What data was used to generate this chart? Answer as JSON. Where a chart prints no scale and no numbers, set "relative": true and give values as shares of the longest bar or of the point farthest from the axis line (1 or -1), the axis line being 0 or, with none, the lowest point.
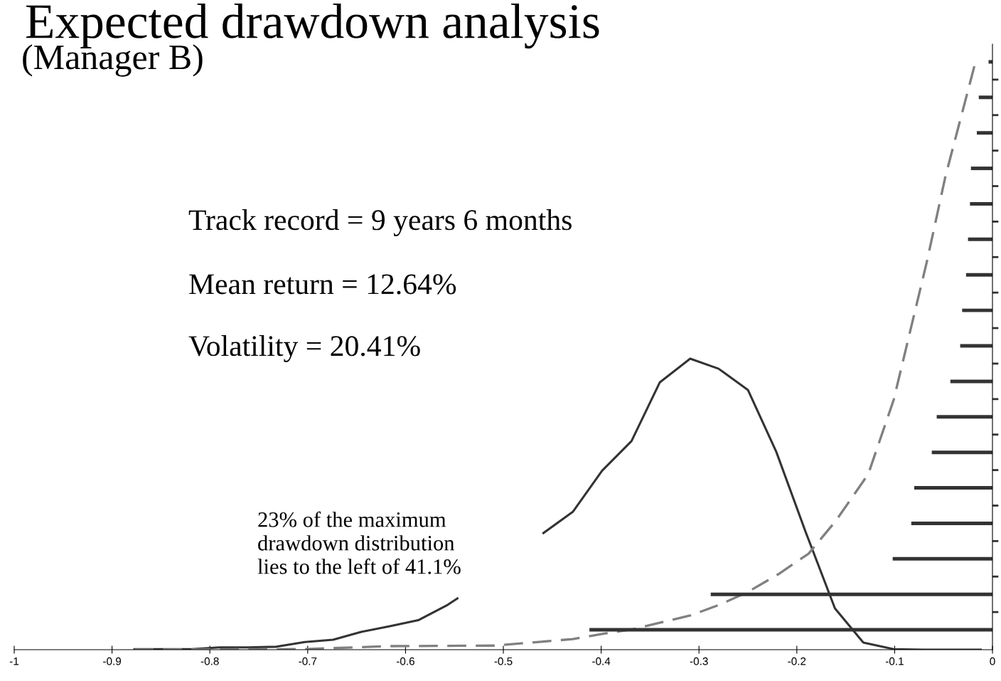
{
  "chart_data": [
    {
      "type": "line",
      "title": "Expected drawdown analysis",
      "subtitle": "(Manager B)",
      "annotations": [
        "Track record = 9 years 6 months",
        "Mean return = 12.64%",
        "Volatility = 20.41%",
        "23% of the maximum\ndrawdown distribution\nlies to the left of 41.1%"
      ],
      "relative": true,
      "xlim": [
        -1,
        0
      ],
      "xticks": [
        -1,
        -0.9,
        -0.8,
        -0.7,
        -0.6,
        -0.5,
        -0.4,
        -0.3,
        -0.2,
        -0.1,
        0
      ],
      "grid": false,
      "marker": "none",
      "series": [
        {
          "color": "#333333",
          "line_style": "solid",
          "x": [
            -0.877,
            -0.819,
            -0.79,
            -0.761,
            -0.732,
            -0.703,
            -0.674,
            -0.646,
            -0.616,
            -0.587,
            -0.557,
            -0.547,
            -0.503,
            -0.459,
            -0.429,
            -0.399,
            -0.369,
            -0.34,
            -0.309,
            -0.28,
            -0.25,
            -0.221,
            -0.191,
            -0.161,
            -0.132,
            -0.101,
            -0.071,
            -0.012
          ],
          "values": [
            0.001,
            0.001,
            0.004,
            0.004,
            0.005,
            0.013,
            0.017,
            0.03,
            0.04,
            0.05,
            0.076,
            0.087,
            null,
            0.198,
            0.234,
            0.304,
            0.354,
            0.454,
            0.494,
            0.477,
            0.441,
            0.336,
            0.2,
            0.07,
            0.012,
            0.001,
            0,
            0
          ]
        },
        {
          "color": "#808080",
          "line_style": "dashed",
          "x": [
            -0.877,
            -0.704,
            -0.617,
            -0.508,
            -0.429,
            -0.398,
            -0.367,
            -0.309,
            -0.278,
            -0.249,
            -0.219,
            -0.188,
            -0.16,
            -0.127,
            -0.101,
            -0.067,
            -0.048,
            -0.017
          ],
          "values": [
            0,
            0.001,
            0.006,
            0.007,
            0.018,
            0.027,
            0.035,
            0.058,
            0.077,
            0.099,
            0.128,
            0.163,
            0.219,
            0.298,
            0.424,
            0.659,
            0.804,
            1
          ]
        }
      ]
    },
    {
      "type": "bar",
      "orientation": "horizontal",
      "xlim": [
        -1,
        0
      ],
      "tick_labels": false,
      "color": "#333333",
      "categories": [
        null,
        null,
        null,
        null,
        null,
        null,
        null,
        null,
        null,
        null,
        null,
        null,
        null,
        null,
        null,
        null,
        null
      ],
      "values": [
        -0.004,
        -0.014,
        -0.016,
        -0.022,
        -0.023,
        -0.025,
        -0.027,
        -0.031,
        -0.033,
        -0.043,
        -0.057,
        -0.062,
        -0.08,
        -0.083,
        -0.102,
        -0.288,
        -0.412
      ]
    }
  ]
}
